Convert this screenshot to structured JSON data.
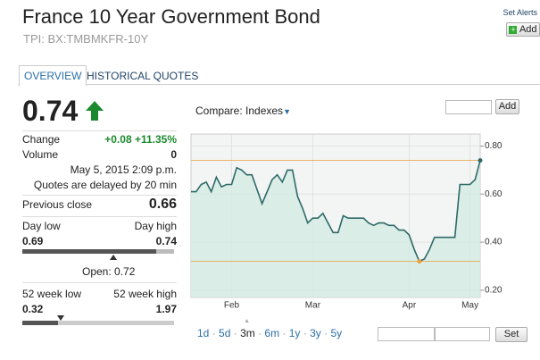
{
  "header": {
    "title": "France 10 Year Government Bond",
    "subtitle": "TPI: BX:TMBMKFR-10Y",
    "alerts": "Set Alerts",
    "add": "Add"
  },
  "tabs": [
    "OVERVIEW",
    "HISTORICAL QUOTES"
  ],
  "quote": {
    "price": "0.74",
    "change_label": "Change",
    "change": "+0.08 +11.35%",
    "volume_label": "Volume",
    "volume": "0",
    "time": "May 5, 2015 2:09 p.m.",
    "delay": "Quotes are delayed by 20 min",
    "prev_label": "Previous close",
    "prev": "0.66",
    "day": {
      "low_label": "Day low",
      "high_label": "Day high",
      "low": "0.69",
      "high": "0.74",
      "open": "Open: 0.72"
    },
    "week52": {
      "low_label": "52 week low",
      "high_label": "52 week high",
      "low": "0.32",
      "high": "1.97"
    }
  },
  "compare": {
    "label": "Compare: Indexes",
    "add": "Add"
  },
  "chart_data": {
    "type": "area",
    "color": "#2e6a68",
    "fill": "#d3ebe4",
    "ref_color": "#e8a040",
    "values": [
      0.61,
      0.61,
      0.64,
      0.65,
      0.61,
      0.67,
      0.63,
      0.64,
      0.64,
      0.71,
      0.7,
      0.68,
      0.68,
      0.62,
      0.56,
      0.61,
      0.66,
      0.68,
      0.65,
      0.7,
      0.7,
      0.59,
      0.54,
      0.48,
      0.5,
      0.5,
      0.52,
      0.48,
      0.44,
      0.44,
      0.51,
      0.5,
      0.5,
      0.5,
      0.5,
      0.48,
      0.47,
      0.48,
      0.48,
      0.47,
      0.47,
      0.45,
      0.45,
      0.43,
      0.37,
      0.32,
      0.33,
      0.37,
      0.42,
      0.42,
      0.42,
      0.42,
      0.42,
      0.64,
      0.64,
      0.64,
      0.66,
      0.74
    ],
    "xlim": [
      0,
      57
    ],
    "xticks": [
      {
        "value": 8,
        "label": "Feb"
      },
      {
        "value": 24,
        "label": "Mar"
      },
      {
        "value": 43,
        "label": "Apr"
      },
      {
        "value": 55,
        "label": "May"
      }
    ],
    "ylim": [
      0.17,
      0.85
    ],
    "yticks": [
      {
        "value": 0.8,
        "label": "0.80"
      },
      {
        "value": 0.6,
        "label": "0.60"
      },
      {
        "value": 0.4,
        "label": "0.40"
      },
      {
        "value": 0.2,
        "label": "0.20"
      }
    ],
    "grid": true
  },
  "ranges": [
    "1d",
    "5d",
    "3m",
    "6m",
    "1y",
    "3y",
    "5y"
  ],
  "selected_range": "3m",
  "set": "Set"
}
